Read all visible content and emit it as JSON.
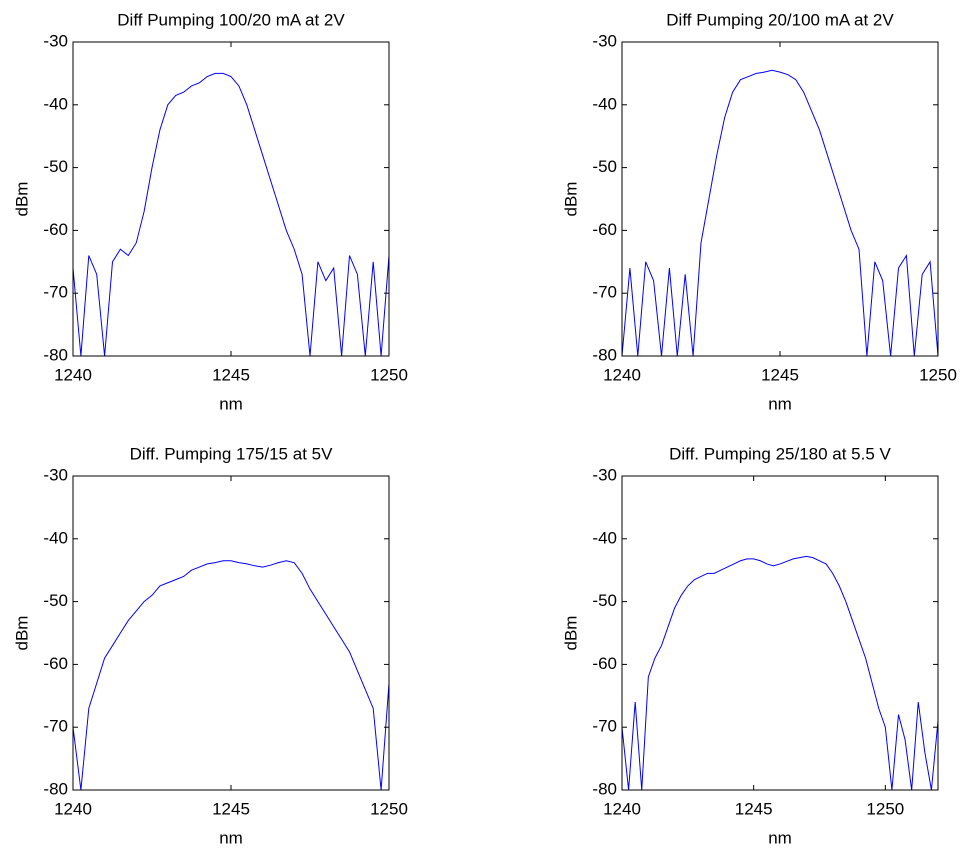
{
  "chart_data": [
    {
      "type": "line",
      "title": "Diff Pumping 100/20 mA at 2V",
      "xlabel": "nm",
      "ylabel": "dBm",
      "color": "#0000ff",
      "xlim": [
        1240,
        1250
      ],
      "xticks": [
        1240,
        1245,
        1250
      ],
      "ylim": [
        -80,
        -30
      ],
      "yticks": [
        -80,
        -70,
        -60,
        -50,
        -40,
        -30
      ],
      "x": [
        1240,
        1240.25,
        1240.5,
        1240.75,
        1241,
        1241.25,
        1241.5,
        1241.75,
        1242,
        1242.25,
        1242.5,
        1242.75,
        1243,
        1243.25,
        1243.5,
        1243.75,
        1244,
        1244.25,
        1244.5,
        1244.75,
        1245,
        1245.25,
        1245.5,
        1245.75,
        1246,
        1246.25,
        1246.5,
        1246.75,
        1247,
        1247.25,
        1247.5,
        1247.75,
        1248,
        1248.25,
        1248.5,
        1248.75,
        1249,
        1249.25,
        1249.5,
        1249.75,
        1250
      ],
      "values": [
        -66,
        -80,
        -64,
        -67,
        -80,
        -65,
        -63,
        -64,
        -62,
        -57,
        -50,
        -44,
        -40,
        -38.5,
        -38,
        -37,
        -36.5,
        -35.5,
        -35,
        -35,
        -35.5,
        -37,
        -40,
        -44,
        -48,
        -52,
        -56,
        -60,
        -63,
        -67,
        -80,
        -65,
        -68,
        -66,
        -80,
        -64,
        -67,
        -80,
        -65,
        -80,
        -64
      ]
    },
    {
      "type": "line",
      "title": "Diff Pumping 20/100 mA at 2V",
      "xlabel": "nm",
      "ylabel": "dBm",
      "color": "#0000ff",
      "xlim": [
        1240,
        1250
      ],
      "xticks": [
        1240,
        1245,
        1250
      ],
      "ylim": [
        -80,
        -30
      ],
      "yticks": [
        -80,
        -70,
        -60,
        -50,
        -40,
        -30
      ],
      "x": [
        1240,
        1240.25,
        1240.5,
        1240.75,
        1241,
        1241.25,
        1241.5,
        1241.75,
        1242,
        1242.25,
        1242.5,
        1242.75,
        1243,
        1243.25,
        1243.5,
        1243.75,
        1244,
        1244.25,
        1244.5,
        1244.75,
        1245,
        1245.25,
        1245.5,
        1245.75,
        1246,
        1246.25,
        1246.5,
        1246.75,
        1247,
        1247.25,
        1247.5,
        1247.75,
        1248,
        1248.25,
        1248.5,
        1248.75,
        1249,
        1249.25,
        1249.5,
        1249.75,
        1250
      ],
      "values": [
        -80,
        -66,
        -80,
        -65,
        -68,
        -80,
        -66,
        -80,
        -67,
        -80,
        -62,
        -55,
        -48,
        -42,
        -38,
        -36,
        -35.5,
        -35,
        -34.8,
        -34.5,
        -34.8,
        -35.2,
        -36,
        -38,
        -41,
        -44,
        -48,
        -52,
        -56,
        -60,
        -63,
        -80,
        -65,
        -68,
        -80,
        -66,
        -64,
        -80,
        -67,
        -65,
        -80
      ]
    },
    {
      "type": "line",
      "title": "Diff. Pumping 175/15 at 5V",
      "xlabel": "nm",
      "ylabel": "dBm",
      "color": "#0000ff",
      "xlim": [
        1240,
        1250
      ],
      "xticks": [
        1240,
        1245,
        1250
      ],
      "ylim": [
        -80,
        -30
      ],
      "yticks": [
        -80,
        -70,
        -60,
        -50,
        -40,
        -30
      ],
      "x": [
        1240,
        1240.25,
        1240.5,
        1240.75,
        1241,
        1241.25,
        1241.5,
        1241.75,
        1242,
        1242.25,
        1242.5,
        1242.75,
        1243,
        1243.25,
        1243.5,
        1243.75,
        1244,
        1244.25,
        1244.5,
        1244.75,
        1245,
        1245.25,
        1245.5,
        1245.75,
        1246,
        1246.25,
        1246.5,
        1246.75,
        1247,
        1247.25,
        1247.5,
        1247.75,
        1248,
        1248.25,
        1248.5,
        1248.75,
        1249,
        1249.25,
        1249.5,
        1249.75,
        1250
      ],
      "values": [
        -70,
        -80,
        -67,
        -63,
        -59,
        -57,
        -55,
        -53,
        -51.5,
        -50,
        -49,
        -47.5,
        -47,
        -46.5,
        -46,
        -45,
        -44.5,
        -44,
        -43.8,
        -43.5,
        -43.5,
        -43.8,
        -44,
        -44.3,
        -44.5,
        -44.2,
        -43.8,
        -43.5,
        -43.8,
        -45.5,
        -48,
        -50,
        -52,
        -54,
        -56,
        -58,
        -61,
        -64,
        -67,
        -80,
        -63
      ]
    },
    {
      "type": "line",
      "title": "Diff. Pumping 25/180 at 5.5 V",
      "xlabel": "nm",
      "ylabel": "dBm",
      "color": "#0000ff",
      "xlim": [
        1240,
        1252
      ],
      "xticks": [
        1240,
        1245,
        1250
      ],
      "ylim": [
        -80,
        -30
      ],
      "yticks": [
        -80,
        -70,
        -60,
        -50,
        -40,
        -30
      ],
      "x": [
        1240,
        1240.25,
        1240.5,
        1240.75,
        1241,
        1241.25,
        1241.5,
        1241.75,
        1242,
        1242.25,
        1242.5,
        1242.75,
        1243,
        1243.25,
        1243.5,
        1243.75,
        1244,
        1244.25,
        1244.5,
        1244.75,
        1245,
        1245.25,
        1245.5,
        1245.75,
        1246,
        1246.25,
        1246.5,
        1246.75,
        1247,
        1247.25,
        1247.5,
        1247.75,
        1248,
        1248.25,
        1248.5,
        1248.75,
        1249,
        1249.25,
        1249.5,
        1249.75,
        1250,
        1250.25,
        1250.5,
        1250.75,
        1251,
        1251.25,
        1251.5,
        1251.75,
        1252
      ],
      "values": [
        -70,
        -80,
        -66,
        -80,
        -62,
        -59,
        -57,
        -54,
        -51,
        -49,
        -47.5,
        -46.5,
        -46,
        -45.5,
        -45.5,
        -45,
        -44.5,
        -44,
        -43.5,
        -43.2,
        -43.2,
        -43.5,
        -44,
        -44.3,
        -44,
        -43.6,
        -43.2,
        -43,
        -42.8,
        -43,
        -43.5,
        -44,
        -45.5,
        -47.5,
        -50,
        -53,
        -56,
        -59,
        -63,
        -67,
        -70,
        -80,
        -68,
        -72,
        -80,
        -66,
        -74,
        -80,
        -69
      ]
    }
  ]
}
